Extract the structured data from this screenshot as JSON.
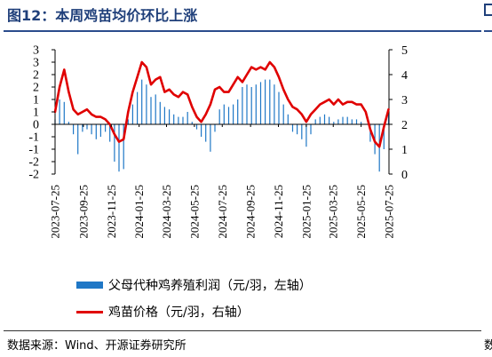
{
  "title": "图12：本周鸡苗均价环比上涨",
  "source": "数据来源：Wind、开源证券研究所",
  "colors": {
    "bar": "#1f77c6",
    "line": "#e00000",
    "title": "#1f3f7a"
  },
  "chart_data": {
    "type": "bar+line",
    "legend": [
      {
        "label": "父母代种鸡养殖利润（元/羽，左轴）",
        "kind": "bar"
      },
      {
        "label": "鸡苗价格（元/羽，右轴）",
        "kind": "line"
      }
    ],
    "x_ticks": [
      "2023-07-25",
      "2023-09-25",
      "2023-11-25",
      "2024-01-25",
      "2024-03-25",
      "2024-05-25",
      "2024-07-25",
      "2024-09-25",
      "2024-11-25",
      "2025-01-25",
      "2025-03-25",
      "2025-05-25",
      "2025-07-25"
    ],
    "y_left": {
      "min": -2,
      "max": 3,
      "ticks": [
        -2,
        -1.5,
        -1,
        -0.5,
        0,
        0.5,
        1,
        1.5,
        2,
        2.5,
        3
      ],
      "tick_labels": [
        "-2",
        "-2",
        "-1",
        "-1",
        "0",
        "1",
        "1",
        "2",
        "2",
        "3",
        "3"
      ]
    },
    "y_right": {
      "min": 0,
      "max": 5,
      "ticks": [
        0,
        1,
        2,
        3,
        4,
        5
      ]
    },
    "series": [
      {
        "name": "父母代种鸡养殖利润（元/羽，左轴）",
        "axis": "left",
        "kind": "bar",
        "x": [
          "2023-07-25",
          "2023-08-04",
          "2023-08-14",
          "2023-08-24",
          "2023-09-03",
          "2023-09-13",
          "2023-09-23",
          "2023-10-03",
          "2023-10-13",
          "2023-10-23",
          "2023-11-02",
          "2023-11-12",
          "2023-11-22",
          "2023-12-02",
          "2023-12-12",
          "2023-12-22",
          "2024-01-01",
          "2024-01-11",
          "2024-01-21",
          "2024-01-31",
          "2024-02-10",
          "2024-02-20",
          "2024-03-01",
          "2024-03-11",
          "2024-03-21",
          "2024-03-31",
          "2024-04-10",
          "2024-04-20",
          "2024-04-30",
          "2024-05-10",
          "2024-05-20",
          "2024-05-30",
          "2024-06-09",
          "2024-06-19",
          "2024-06-29",
          "2024-07-09",
          "2024-07-19",
          "2024-07-29",
          "2024-08-08",
          "2024-08-18",
          "2024-08-28",
          "2024-09-07",
          "2024-09-17",
          "2024-09-27",
          "2024-10-07",
          "2024-10-17",
          "2024-10-27",
          "2024-11-06",
          "2024-11-16",
          "2024-11-26",
          "2024-12-06",
          "2024-12-16",
          "2024-12-26",
          "2025-01-05",
          "2025-01-15",
          "2025-01-25",
          "2025-02-04",
          "2025-02-14",
          "2025-02-24",
          "2025-03-06",
          "2025-03-16",
          "2025-03-26",
          "2025-04-05",
          "2025-04-15",
          "2025-04-25",
          "2025-05-05",
          "2025-05-15",
          "2025-05-25",
          "2025-06-04",
          "2025-06-14",
          "2025-06-24",
          "2025-07-04",
          "2025-07-14",
          "2025-07-24"
        ],
        "values": [
          0.2,
          1.0,
          0.9,
          0.1,
          -0.4,
          -1.2,
          -0.3,
          -0.2,
          -0.4,
          -0.6,
          -0.5,
          -0.3,
          -0.7,
          -1.5,
          -1.9,
          -1.8,
          0.2,
          0.8,
          1.3,
          1.8,
          1.6,
          1.1,
          1.2,
          0.9,
          0.7,
          0.6,
          0.4,
          0.3,
          0.3,
          0.5,
          0.1,
          -0.2,
          -0.5,
          -0.7,
          -1.1,
          -0.3,
          0.6,
          0.8,
          0.7,
          0.8,
          1.0,
          1.5,
          1.6,
          1.5,
          1.6,
          1.7,
          1.8,
          1.8,
          1.6,
          1.3,
          0.8,
          0.4,
          -0.3,
          -0.4,
          -0.6,
          -0.9,
          -0.4,
          0.2,
          0.3,
          0.4,
          0.3,
          0.1,
          0.2,
          0.3,
          0.3,
          0.2,
          0.2,
          0.1,
          0.0,
          -0.7,
          -1.2,
          -1.9,
          -1.0,
          0.4
        ]
      },
      {
        "name": "鸡苗价格（元/羽，右轴）",
        "axis": "right",
        "kind": "line",
        "x": [
          "2023-07-25",
          "2023-08-04",
          "2023-08-14",
          "2023-08-24",
          "2023-09-03",
          "2023-09-13",
          "2023-09-23",
          "2023-10-03",
          "2023-10-13",
          "2023-10-23",
          "2023-11-02",
          "2023-11-12",
          "2023-11-22",
          "2023-12-02",
          "2023-12-12",
          "2023-12-22",
          "2024-01-01",
          "2024-01-11",
          "2024-01-21",
          "2024-01-31",
          "2024-02-10",
          "2024-02-20",
          "2024-03-01",
          "2024-03-11",
          "2024-03-21",
          "2024-03-31",
          "2024-04-10",
          "2024-04-20",
          "2024-04-30",
          "2024-05-10",
          "2024-05-20",
          "2024-05-30",
          "2024-06-09",
          "2024-06-19",
          "2024-06-29",
          "2024-07-09",
          "2024-07-19",
          "2024-07-29",
          "2024-08-08",
          "2024-08-18",
          "2024-08-28",
          "2024-09-07",
          "2024-09-17",
          "2024-09-27",
          "2024-10-07",
          "2024-10-17",
          "2024-10-27",
          "2024-11-06",
          "2024-11-16",
          "2024-11-26",
          "2024-12-06",
          "2024-12-16",
          "2024-12-26",
          "2025-01-05",
          "2025-01-15",
          "2025-01-25",
          "2025-02-04",
          "2025-02-14",
          "2025-02-24",
          "2025-03-06",
          "2025-03-16",
          "2025-03-26",
          "2025-04-05",
          "2025-04-15",
          "2025-04-25",
          "2025-05-05",
          "2025-05-15",
          "2025-05-25",
          "2025-06-04",
          "2025-06-14",
          "2025-06-24",
          "2025-07-04",
          "2025-07-14",
          "2025-07-24"
        ],
        "values": [
          2.5,
          3.5,
          4.2,
          3.3,
          2.6,
          2.4,
          2.5,
          2.6,
          2.4,
          2.3,
          2.3,
          2.2,
          2.0,
          1.6,
          1.3,
          1.4,
          2.5,
          3.3,
          3.9,
          4.5,
          4.3,
          3.6,
          3.8,
          3.9,
          3.3,
          3.4,
          3.2,
          3.1,
          3.3,
          3.2,
          2.7,
          2.3,
          2.1,
          2.4,
          2.8,
          3.4,
          3.5,
          3.3,
          3.3,
          3.6,
          3.9,
          3.7,
          4.0,
          4.3,
          4.2,
          4.3,
          4.2,
          4.5,
          4.3,
          3.9,
          3.4,
          3.0,
          2.7,
          2.6,
          2.4,
          2.1,
          2.4,
          2.6,
          2.8,
          2.9,
          3.0,
          2.8,
          3.0,
          2.8,
          2.9,
          2.9,
          2.8,
          2.8,
          2.5,
          1.8,
          1.3,
          1.1,
          1.9,
          2.6
        ]
      }
    ],
    "grid": false
  }
}
